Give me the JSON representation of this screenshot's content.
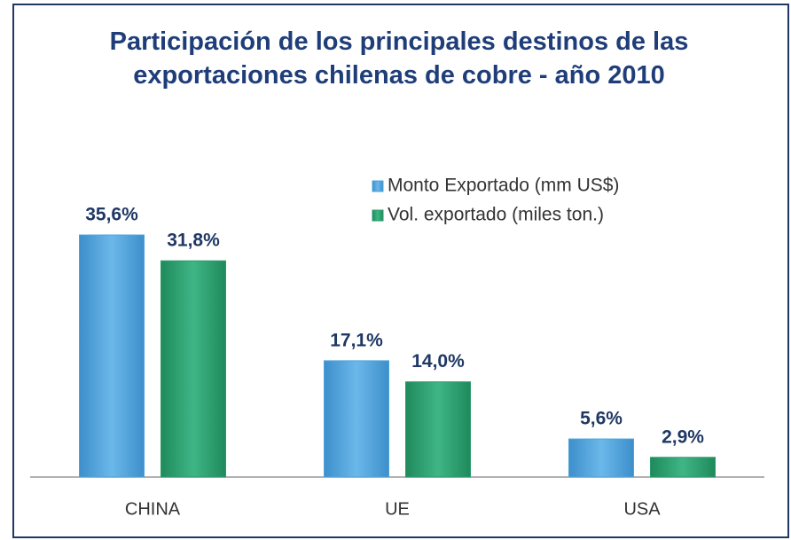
{
  "chart_data": {
    "type": "bar",
    "title": "Participación de los principales destinos de las exportaciones chilenas de cobre - año 2010",
    "categories": [
      "CHINA",
      "UE",
      "USA"
    ],
    "series": [
      {
        "name": "Monto Exportado (mm US$)",
        "color": "#4fa3dc",
        "values": [
          35.6,
          17.1,
          5.6
        ],
        "value_labels": [
          "35,6%",
          "17,1%",
          "5,6%"
        ]
      },
      {
        "name": "Vol. exportado (miles ton.)",
        "color": "#2b9b6c",
        "values": [
          31.8,
          14.0,
          2.9
        ],
        "value_labels": [
          "31,8%",
          "14,0%",
          "2,9%"
        ]
      }
    ],
    "legend": "top-right"
  }
}
